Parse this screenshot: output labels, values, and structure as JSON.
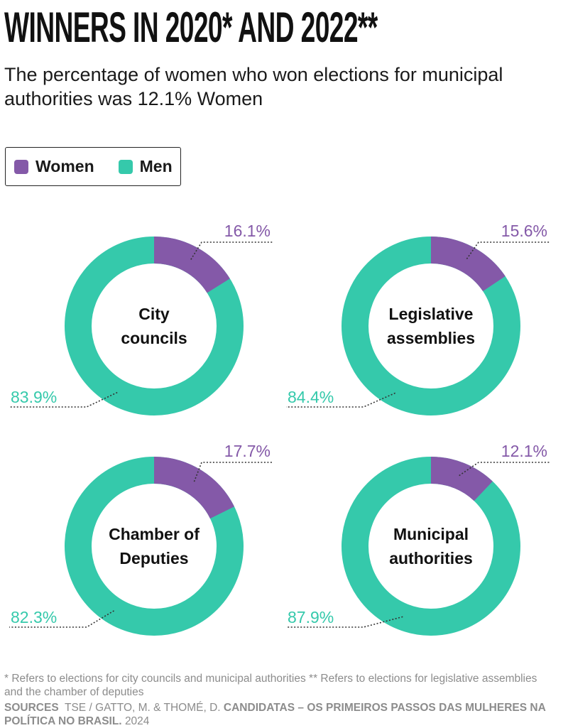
{
  "header": {
    "title": "WINNERS IN 2020* AND 2022**",
    "subtitle": "The percentage of women who won elections for municipal authorities was 12.1% Women"
  },
  "legend": [
    {
      "label": "Women",
      "color": "#8459a8"
    },
    {
      "label": "Men",
      "color": "#35c9ab"
    }
  ],
  "colors": {
    "women": "#8459a8",
    "men": "#35c9ab",
    "leader": "#333333"
  },
  "chart_data": {
    "type": "pie",
    "variant": "donut",
    "series": [
      {
        "name": "City councils",
        "center_label": [
          "City",
          "councils"
        ],
        "women": 16.1,
        "men": 83.9,
        "women_label": "16.1%",
        "men_label": "83.9%"
      },
      {
        "name": "Legislative assemblies",
        "center_label": [
          "Legislative",
          "assemblies"
        ],
        "women": 15.6,
        "men": 84.4,
        "women_label": "15.6%",
        "men_label": "84.4%"
      },
      {
        "name": "Chamber of Deputies",
        "center_label": [
          "Chamber of",
          "Deputies"
        ],
        "women": 17.7,
        "men": 82.3,
        "women_label": "17.7%",
        "men_label": "82.3%"
      },
      {
        "name": "Municipal authorities",
        "center_label": [
          "Municipal",
          "authorities"
        ],
        "women": 12.1,
        "men": 87.9,
        "women_label": "12.1%",
        "men_label": "87.9%"
      }
    ]
  },
  "footer": {
    "footnote": "* Refers to elections for city councils and municipal authorities ** Refers to elections for legislative assemblies and the chamber of deputies",
    "sources_label": "SOURCES",
    "sources_authors": "TSE / GATTO, M. & THOMÉ, D.",
    "sources_work": "CANDIDATAS – OS PRIMEIROS PASSOS DAS MULHERES NA POLÍTICA NO BRASIL.",
    "sources_year": "2024"
  }
}
